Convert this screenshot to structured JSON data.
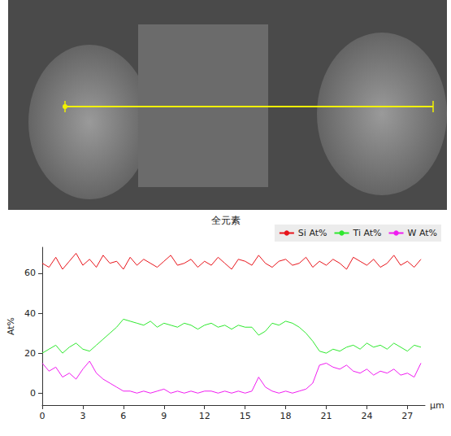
{
  "chart_data": {
    "type": "line",
    "title": "全元素",
    "x_label": "µm",
    "y_label": "At%",
    "x": [
      0,
      0.5,
      1,
      1.5,
      2,
      2.5,
      3,
      3.5,
      4,
      4.5,
      5,
      5.5,
      6,
      6.5,
      7,
      7.5,
      8,
      8.5,
      9,
      9.5,
      10,
      10.5,
      11,
      11.5,
      12,
      12.5,
      13,
      13.5,
      14,
      14.5,
      15,
      15.5,
      16,
      16.5,
      17,
      17.5,
      18,
      18.5,
      19,
      19.5,
      20,
      20.5,
      21,
      21.5,
      22,
      22.5,
      23,
      23.5,
      24,
      24.5,
      25,
      25.5,
      26,
      26.5,
      27,
      27.5,
      28
    ],
    "series": [
      {
        "name": "Si At%",
        "color": "#e8141b",
        "values": [
          65,
          63,
          68,
          62,
          66,
          70,
          64,
          67,
          63,
          69,
          65,
          66,
          62,
          68,
          64,
          67,
          65,
          63,
          66,
          69,
          64,
          65,
          67,
          63,
          66,
          64,
          68,
          65,
          62,
          67,
          66,
          64,
          69,
          65,
          63,
          66,
          67,
          64,
          65,
          68,
          63,
          66,
          64,
          67,
          65,
          62,
          68,
          66,
          64,
          67,
          63,
          65,
          69,
          64,
          66,
          63,
          67
        ]
      },
      {
        "name": "Ti At%",
        "color": "#2ee82e",
        "values": [
          20,
          22,
          24,
          20,
          23,
          25,
          22,
          21,
          24,
          27,
          30,
          33,
          37,
          36,
          35,
          34,
          36,
          33,
          35,
          34,
          33,
          35,
          34,
          32,
          34,
          35,
          33,
          34,
          32,
          34,
          33,
          33,
          29,
          31,
          35,
          34,
          36,
          35,
          33,
          30,
          26,
          21,
          20,
          22,
          21,
          23,
          24,
          22,
          25,
          23,
          24,
          22,
          25,
          23,
          21,
          24,
          23
        ]
      },
      {
        "name": "W At%",
        "color": "#f01cf0",
        "values": [
          15,
          11,
          13,
          8,
          10,
          7,
          12,
          16,
          10,
          7,
          5,
          3,
          1,
          1,
          0,
          1,
          0,
          1,
          2,
          0,
          1,
          0,
          1,
          0,
          1,
          1,
          0,
          1,
          0,
          1,
          0,
          1,
          8,
          3,
          1,
          0,
          1,
          0,
          1,
          2,
          5,
          14,
          15,
          13,
          12,
          14,
          11,
          10,
          12,
          9,
          11,
          10,
          12,
          9,
          10,
          8,
          15
        ]
      }
    ],
    "xlim": [
      0,
      28.3
    ],
    "xticks": [
      0,
      3,
      6,
      9,
      12,
      15,
      18,
      21,
      24,
      27
    ],
    "ylim": [
      -6,
      73
    ],
    "yticks": [
      0,
      20,
      40,
      60
    ],
    "legend": "top-right",
    "grid": false
  }
}
